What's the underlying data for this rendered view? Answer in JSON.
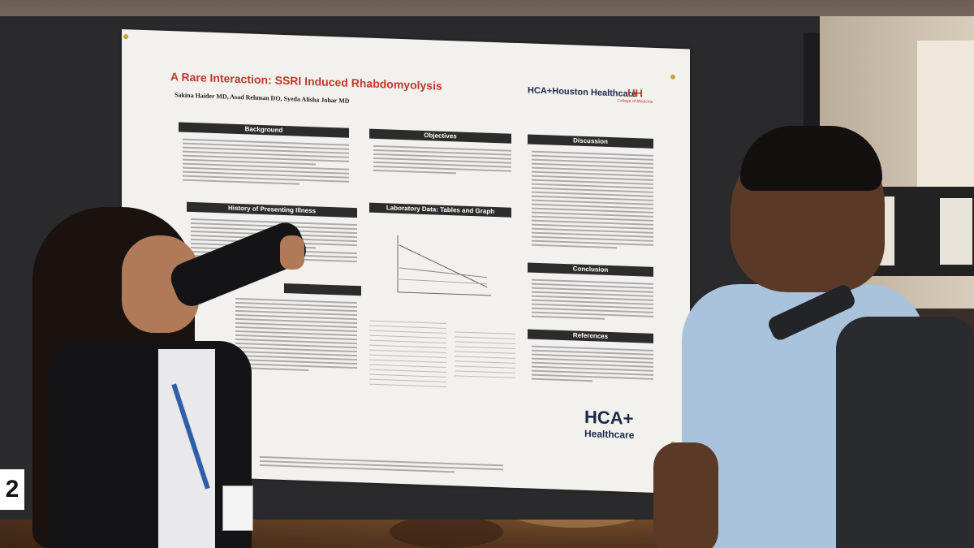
{
  "poster": {
    "title": "A Rare Interaction: SSRI Induced Rhabdomyolysis",
    "authors": "Sakina Haider MD, Asad Rehman DO, Syeda Alisha Johar MD",
    "logo_hca_small": "HCA+Houston Healthcare",
    "logo_uh": "College of Medicine",
    "sections": {
      "background": "Background",
      "objectives": "Objectives",
      "discussion": "Discussion",
      "history": "History of Presenting Illness",
      "lab": "Laboratory Data: Tables and Graph",
      "conclusion": "Conclusion",
      "references": "References"
    },
    "logo_hca_big_1": "HCA+",
    "logo_hca_big_2": "Healthcare"
  },
  "booth": {
    "stand_number": "2"
  },
  "colors": {
    "title_red": "#c0392b",
    "hca_navy": "#1a2a4a",
    "section_header": "#2c2c2c",
    "lanyard_blue": "#2f5fa8"
  }
}
